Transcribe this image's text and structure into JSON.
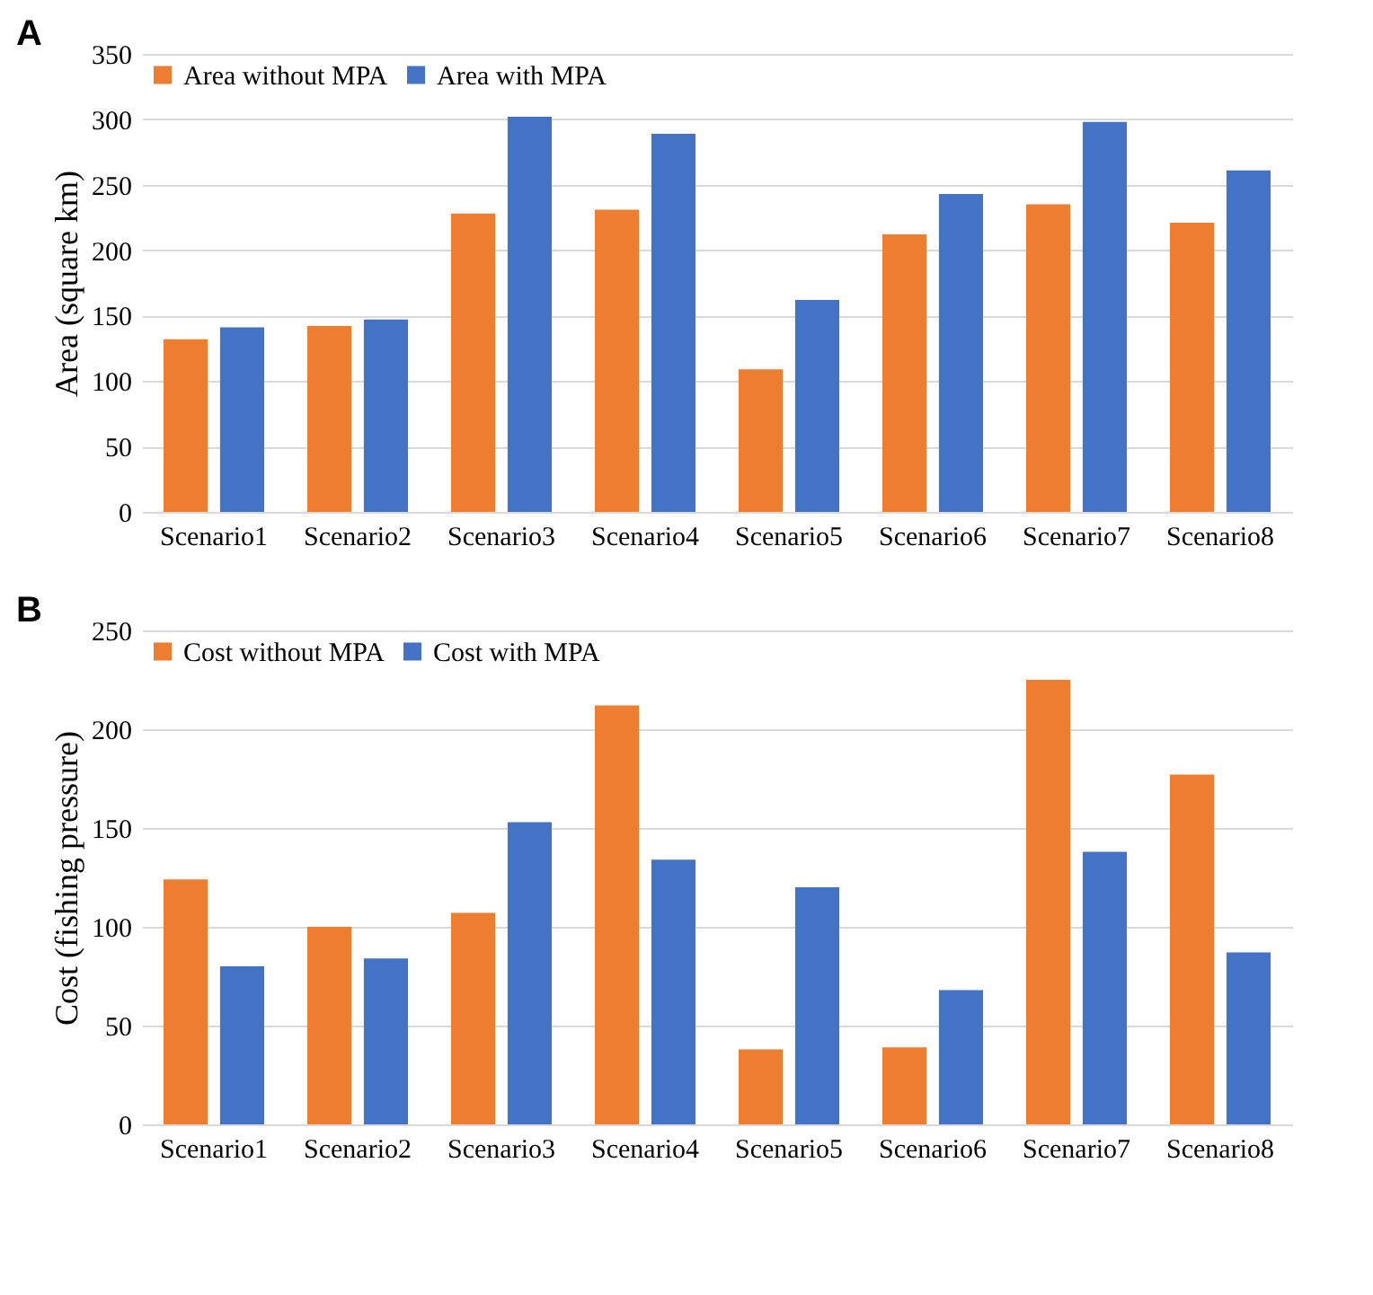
{
  "chart_data": [
    {
      "type": "bar",
      "title": "A",
      "ylabel": "Area (square km)",
      "categories": [
        "Scenario1",
        "Scenario2",
        "Scenario3",
        "Scenario4",
        "Scenario5",
        "Scenario6",
        "Scenario7",
        "Scenario8"
      ],
      "series": [
        {
          "name": "Area without MPA",
          "color": "#ed7d31",
          "values": [
            132,
            142,
            228,
            231,
            109,
            212,
            235,
            221
          ]
        },
        {
          "name": "Area with MPA",
          "color": "#4472c4",
          "values": [
            141,
            147,
            302,
            289,
            162,
            243,
            298,
            261
          ]
        }
      ],
      "ylim": [
        0,
        350
      ],
      "yticks": [
        0,
        50,
        100,
        150,
        200,
        250,
        300,
        350
      ],
      "grid": "y",
      "legend": "top left"
    },
    {
      "type": "bar",
      "title": "B",
      "ylabel": "Cost (fishing pressure)",
      "categories": [
        "Scenario1",
        "Scenario2",
        "Scenario3",
        "Scenario4",
        "Scenario5",
        "Scenario6",
        "Scenario7",
        "Scenario8"
      ],
      "series": [
        {
          "name": "Cost without MPA",
          "color": "#ed7d31",
          "values": [
            124,
            100,
            107,
            212,
            38,
            39,
            225,
            177
          ]
        },
        {
          "name": "Cost with MPA",
          "color": "#4472c4",
          "values": [
            80,
            84,
            153,
            134,
            120,
            68,
            138,
            87
          ]
        }
      ],
      "ylim": [
        0,
        250
      ],
      "yticks": [
        0,
        50,
        100,
        150,
        200,
        250
      ],
      "grid": "y",
      "legend": "top left"
    }
  ]
}
